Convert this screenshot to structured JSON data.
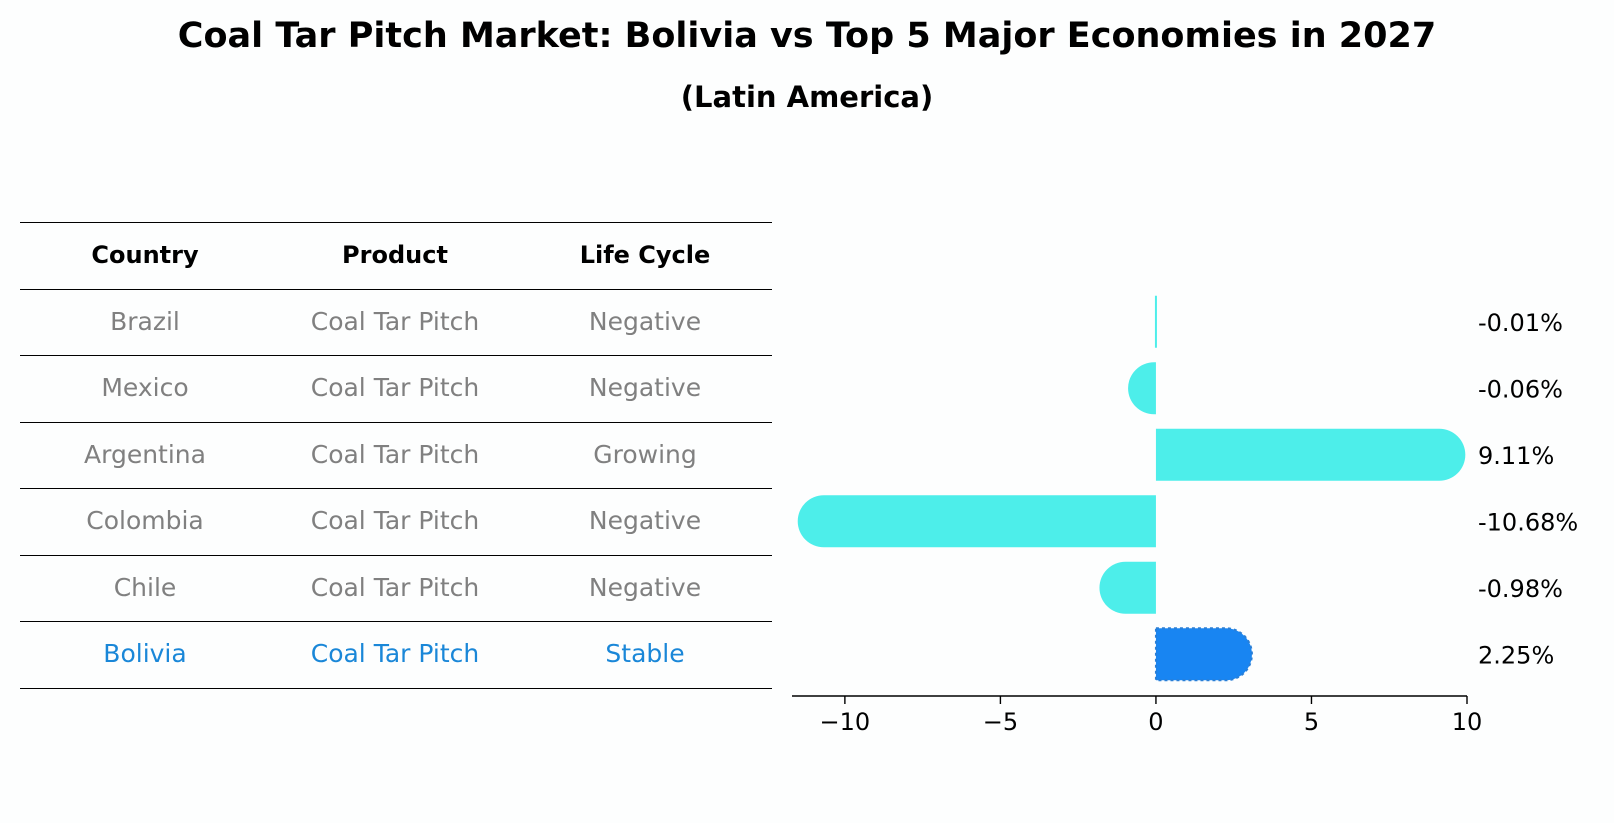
{
  "title": "Coal Tar Pitch Market: Bolivia vs Top 5 Major Economies in 2027",
  "subtitle": "(Latin America)",
  "colors": {
    "bar": "#4deeea",
    "highlight_bar": "#1885f2",
    "highlight_text": "#1a87d8",
    "row_text": "#808080"
  },
  "table": {
    "headers": [
      "Country",
      "Product",
      "Life Cycle"
    ],
    "rows": [
      [
        "Brazil",
        "Coal Tar Pitch",
        "Negative"
      ],
      [
        "Mexico",
        "Coal Tar Pitch",
        "Negative"
      ],
      [
        "Argentina",
        "Coal Tar Pitch",
        "Growing"
      ],
      [
        "Colombia",
        "Coal Tar Pitch",
        "Negative"
      ],
      [
        "Chile",
        "Coal Tar Pitch",
        "Negative"
      ],
      [
        "Bolivia",
        "Coal Tar Pitch",
        "Stable"
      ]
    ],
    "highlight_row": 5
  },
  "chart_data": {
    "type": "bar",
    "orientation": "horizontal",
    "categories": [
      "Brazil",
      "Mexico",
      "Argentina",
      "Colombia",
      "Chile",
      "Bolivia"
    ],
    "values": [
      -0.01,
      -0.06,
      9.11,
      -10.68,
      -0.98,
      2.25
    ],
    "value_labels": [
      "-0.01%",
      "-0.06%",
      "9.11%",
      "-10.68%",
      "-0.98%",
      "2.25%"
    ],
    "highlight": "Bolivia",
    "xlim": [
      -11.7,
      10
    ],
    "xticks": [
      -10,
      -5,
      0,
      5,
      10
    ],
    "xtick_labels": [
      "−10",
      "−5",
      "0",
      "5",
      "10"
    ],
    "grid": false
  }
}
